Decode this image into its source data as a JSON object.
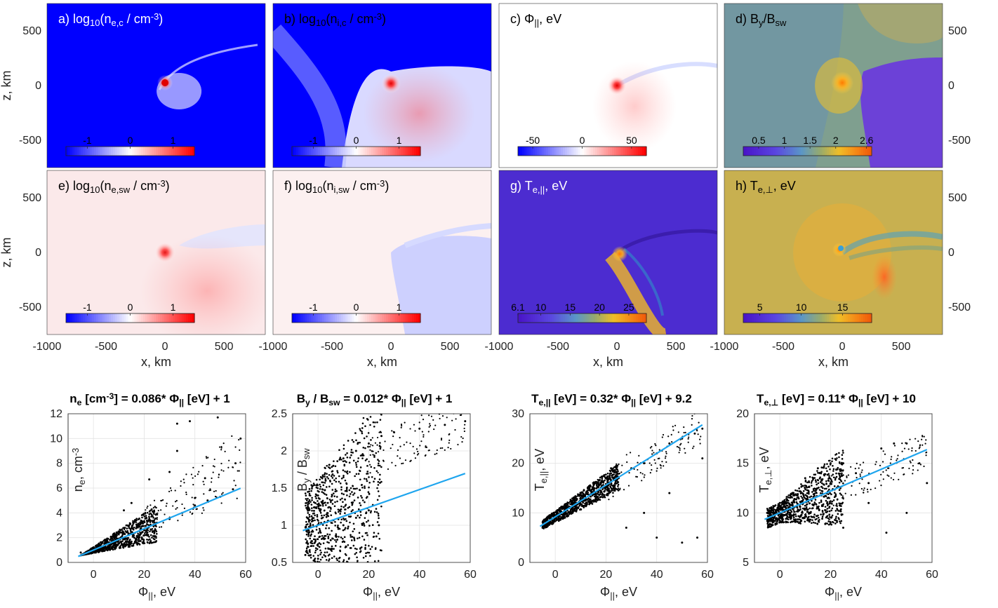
{
  "figure": {
    "background": "#ffffff"
  },
  "chart_data": [
    {
      "type": "heatmap",
      "id": "a",
      "title": "a) log10(ne,c / cm-3)",
      "title_parts": {
        "tag": "a)",
        "base": "log",
        "sub1": "10",
        "mid": "(n",
        "sub2": "e,c",
        "rest": " / cm",
        "sup": "-3",
        "end": ")"
      },
      "colormap": "bwr",
      "background": "#0000ff",
      "colorbar": {
        "ticks": [
          "-1",
          "0",
          "1"
        ],
        "tick_pos": [
          -1,
          0,
          1
        ],
        "range": [
          -1.5,
          1.5
        ]
      },
      "yticks": [
        "500",
        "0",
        "-500"
      ],
      "ylabel": "z, km",
      "xlim": [
        -1000,
        850
      ],
      "ylim": [
        -750,
        750
      ]
    },
    {
      "type": "heatmap",
      "id": "b",
      "title": "b) log10(ni,c / cm-3)",
      "title_parts": {
        "tag": "b)",
        "base": "log",
        "sub1": "10",
        "mid": "(n",
        "sub2": "i,c",
        "rest": " / cm",
        "sup": "-3",
        "end": ")"
      },
      "colormap": "bwr",
      "background": "#0000ff",
      "colorbar": {
        "ticks": [
          "-1",
          "0",
          "1"
        ],
        "tick_pos": [
          -1,
          0,
          1
        ],
        "range": [
          -1.5,
          1.5
        ]
      }
    },
    {
      "type": "heatmap",
      "id": "c",
      "title": "c) Φ||, eV",
      "title_parts": {
        "tag": "c)",
        "base": "Φ",
        "sub1": "||",
        "rest": ", eV"
      },
      "colormap": "bwr",
      "background": "#ffffff",
      "colorbar": {
        "ticks": [
          "-50",
          "0",
          "50"
        ],
        "tick_pos": [
          -50,
          0,
          50
        ],
        "range": [
          -65,
          65
        ]
      }
    },
    {
      "type": "heatmap",
      "id": "d",
      "title": "d) By/Bsw",
      "title_parts": {
        "tag": "d)",
        "base": "B",
        "sub1": "y",
        "rest": "/B",
        "sub2": "sw"
      },
      "colormap": "plasma",
      "background": "#7f9f8f",
      "colorbar": {
        "ticks": [
          "0.5",
          "1",
          "1.5",
          "2",
          "2.6"
        ],
        "tick_pos": [
          0.5,
          1,
          1.5,
          2,
          2.6
        ],
        "range": [
          0.2,
          2.7
        ]
      },
      "yticks": [
        "500",
        "0",
        "-500"
      ]
    },
    {
      "type": "heatmap",
      "id": "e",
      "title": "e) log10(ne,sw / cm-3)",
      "title_parts": {
        "tag": "e)",
        "base": "log",
        "sub1": "10",
        "mid": "(n",
        "sub2": "e,sw",
        "rest": " / cm",
        "sup": "-3",
        "end": ")"
      },
      "colormap": "bwr",
      "background": "#fbe9ea",
      "colorbar": {
        "ticks": [
          "-1",
          "0",
          "1"
        ],
        "tick_pos": [
          -1,
          0,
          1
        ],
        "range": [
          -1.5,
          1.5
        ]
      },
      "yticks": [
        "500",
        "0",
        "-500"
      ],
      "ylabel": "z, km",
      "xticks": [
        "-1000",
        "-500",
        "0",
        "500"
      ],
      "xlabel": "x, km"
    },
    {
      "type": "heatmap",
      "id": "f",
      "title": "f) log10(ni,sw / cm-3)",
      "title_parts": {
        "tag": "f)",
        "base": "log",
        "sub1": "10",
        "mid": "(n",
        "sub2": "i,sw",
        "rest": " / cm",
        "sup": "-3",
        "end": ")"
      },
      "colormap": "bwr",
      "background": "#fcf0f0",
      "colorbar": {
        "ticks": [
          "-1",
          "0",
          "1"
        ],
        "tick_pos": [
          -1,
          0,
          1
        ],
        "range": [
          -1.5,
          1.5
        ]
      },
      "xticks": [
        "-1000",
        "-500",
        "0",
        "500"
      ],
      "xlabel": "x, km"
    },
    {
      "type": "heatmap",
      "id": "g",
      "title": "g) Te,||, eV",
      "title_parts": {
        "tag": "g)",
        "base": "T",
        "sub1": "e,||",
        "rest": ", eV"
      },
      "colormap": "plasma",
      "background": "#4c2cd0",
      "colorbar": {
        "ticks": [
          "6.1",
          "10",
          "15",
          "20",
          "25"
        ],
        "tick_pos": [
          6.1,
          10,
          15,
          20,
          25
        ],
        "range": [
          6.1,
          28
        ]
      },
      "xticks": [
        "-1000",
        "-500",
        "0",
        "500"
      ],
      "xlabel": "x, km"
    },
    {
      "type": "heatmap",
      "id": "h",
      "title": "h) Te,⊥, eV",
      "title_parts": {
        "tag": "h)",
        "base": "T",
        "sub1": "e,⊥",
        "rest": ", eV"
      },
      "colormap": "plasma",
      "background": "#c8b050",
      "colorbar": {
        "ticks": [
          "5",
          "10",
          "15"
        ],
        "tick_pos": [
          5,
          10,
          15
        ],
        "range": [
          3,
          18.5
        ]
      },
      "yticks": [
        "500",
        "0",
        "-500"
      ],
      "xticks": [
        "-1000",
        "-500",
        "0",
        "500"
      ],
      "xlabel": "x, km"
    },
    {
      "type": "scatter",
      "id": "i",
      "title": "ne [cm-3] = 0.086* Φ|| [eV] + 1",
      "title_parts": {
        "a": "n",
        "a_sub": "e",
        "b": " [cm",
        "b_sup": "-3",
        "c": "] = 0.086* Φ",
        "c_sub": "||",
        "d": " [eV] + 1"
      },
      "xlabel": "Φ||, eV",
      "xlabel_parts": {
        "base": "Φ",
        "sub": "||",
        "rest": ", eV"
      },
      "ylabel": "ne, cm-3",
      "ylabel_parts": {
        "base": "n",
        "sub": "e",
        "rest": ", cm",
        "sup": "-3"
      },
      "xlim": [
        -10,
        60
      ],
      "ylim": [
        0,
        12
      ],
      "xticks": [
        "0",
        "20",
        "40",
        "60"
      ],
      "xtick_vals": [
        0,
        20,
        40,
        60
      ],
      "yticks": [
        "0",
        "2",
        "4",
        "6",
        "8",
        "10",
        "12"
      ],
      "ytick_vals": [
        0,
        2,
        4,
        6,
        8,
        10,
        12
      ],
      "fit": {
        "slope": 0.086,
        "intercept": 1,
        "x": [
          -6,
          58
        ],
        "color": "#1ea5ee"
      },
      "points": [
        [
          -5,
          0.8
        ],
        [
          0,
          1.1
        ],
        [
          5,
          1.5
        ],
        [
          10,
          1.9
        ],
        [
          15,
          2.3
        ],
        [
          20,
          2.6
        ],
        [
          25,
          3.2
        ],
        [
          30,
          3.5
        ],
        [
          35,
          4.0
        ],
        [
          40,
          4.6
        ],
        [
          45,
          5.0
        ],
        [
          50,
          5.3
        ],
        [
          55,
          5.9
        ],
        [
          22,
          6.7
        ],
        [
          30,
          7.3
        ],
        [
          33,
          9.0
        ],
        [
          38,
          11.4
        ],
        [
          33,
          11.2
        ],
        [
          49,
          11.7
        ],
        [
          58,
          10.0
        ],
        [
          56,
          8.0
        ],
        [
          44,
          6.8
        ],
        [
          40,
          5.2
        ],
        [
          12,
          4.2
        ],
        [
          15,
          4.8
        ]
      ]
    },
    {
      "type": "scatter",
      "id": "j",
      "title": "By / Bsw = 0.012* Φ|| [eV] + 1",
      "title_parts": {
        "a": "B",
        "a_sub": "y",
        "b": " / B",
        "b_sub": "sw",
        "c": " = 0.012* Φ",
        "c_sub": "||",
        "d": " [eV] + 1"
      },
      "xlabel": "Φ||, eV",
      "xlabel_parts": {
        "base": "Φ",
        "sub": "||",
        "rest": ", eV"
      },
      "ylabel": "By / Bsw",
      "ylabel_parts": {
        "base": "B",
        "sub": "y",
        "rest": " / B",
        "sub2": "sw"
      },
      "xlim": [
        -10,
        60
      ],
      "ylim": [
        0.5,
        2.5
      ],
      "xticks": [
        "0",
        "20",
        "40",
        "60"
      ],
      "xtick_vals": [
        0,
        20,
        40,
        60
      ],
      "yticks": [
        "0.5",
        "1",
        "1.5",
        "2",
        "2.5"
      ],
      "ytick_vals": [
        0.5,
        1,
        1.5,
        2,
        2.5
      ],
      "fit": {
        "slope": 0.012,
        "intercept": 1,
        "x": [
          -6,
          58
        ],
        "color": "#1ea5ee"
      },
      "points": [
        [
          -5,
          0.6
        ],
        [
          -3,
          1.0
        ],
        [
          0,
          1.4
        ],
        [
          3,
          1.6
        ],
        [
          6,
          1.8
        ],
        [
          10,
          1.9
        ],
        [
          15,
          2.0
        ],
        [
          20,
          2.1
        ],
        [
          25,
          2.2
        ],
        [
          30,
          2.25
        ],
        [
          40,
          2.3
        ],
        [
          50,
          2.35
        ],
        [
          58,
          2.4
        ],
        [
          0,
          0.55
        ],
        [
          5,
          0.8
        ],
        [
          10,
          1.0
        ],
        [
          15,
          1.1
        ],
        [
          20,
          1.2
        ],
        [
          24,
          1.0
        ],
        [
          23,
          0.85
        ]
      ]
    },
    {
      "type": "scatter",
      "id": "k",
      "title": "Te,|| [eV] = 0.32* Φ|| [eV] + 9.2",
      "title_parts": {
        "a": "T",
        "a_sub": "e,||",
        "b": " [eV] = 0.32* Φ",
        "b_sub": "||",
        "c": " [eV] + 9.2"
      },
      "xlabel": "Φ||, eV",
      "xlabel_parts": {
        "base": "Φ",
        "sub": "||",
        "rest": ", eV"
      },
      "ylabel": "Te,||, eV",
      "ylabel_parts": {
        "base": "T",
        "sub": "e,||",
        "rest": ", eV"
      },
      "xlim": [
        -10,
        60
      ],
      "ylim": [
        0,
        30
      ],
      "xticks": [
        "0",
        "20",
        "40",
        "60"
      ],
      "xtick_vals": [
        0,
        20,
        40,
        60
      ],
      "yticks": [
        "0",
        "10",
        "20",
        "30"
      ],
      "ytick_vals": [
        0,
        10,
        20,
        30
      ],
      "fit": {
        "slope": 0.32,
        "intercept": 9.2,
        "x": [
          -6,
          58
        ],
        "color": "#1ea5ee"
      },
      "points": [
        [
          -5,
          7
        ],
        [
          0,
          9
        ],
        [
          5,
          11
        ],
        [
          10,
          13
        ],
        [
          15,
          15
        ],
        [
          20,
          17
        ],
        [
          22,
          19
        ],
        [
          25,
          17
        ],
        [
          30,
          19
        ],
        [
          35,
          20
        ],
        [
          40,
          22
        ],
        [
          45,
          24
        ],
        [
          50,
          25
        ],
        [
          55,
          26
        ],
        [
          58,
          27
        ],
        [
          28,
          7
        ],
        [
          40,
          5
        ],
        [
          50,
          4
        ],
        [
          56,
          5
        ],
        [
          45,
          14
        ],
        [
          35,
          10
        ],
        [
          58,
          21
        ]
      ]
    },
    {
      "type": "scatter",
      "id": "l",
      "title": "Te,⊥ [eV] = 0.11* Φ|| [eV] + 10",
      "title_parts": {
        "a": "T",
        "a_sub": "e,⊥",
        "b": " [eV] = 0.11* Φ",
        "b_sub": "||",
        "c": " [eV] + 10"
      },
      "xlabel": "Φ||, eV",
      "xlabel_parts": {
        "base": "Φ",
        "sub": "||",
        "rest": ", eV"
      },
      "ylabel": "Te,⊥, eV",
      "ylabel_parts": {
        "base": "T",
        "sub": "e,⊥",
        "rest": ", eV"
      },
      "xlim": [
        -10,
        60
      ],
      "ylim": [
        5,
        20
      ],
      "xticks": [
        "0",
        "20",
        "40",
        "60"
      ],
      "xtick_vals": [
        0,
        20,
        40,
        60
      ],
      "yticks": [
        "5",
        "10",
        "15",
        "20"
      ],
      "ytick_vals": [
        5,
        10,
        15,
        20
      ],
      "fit": {
        "slope": 0.11,
        "intercept": 10,
        "x": [
          -6,
          58
        ],
        "color": "#1ea5ee"
      },
      "points": [
        [
          -5,
          10
        ],
        [
          0,
          11
        ],
        [
          5,
          12
        ],
        [
          10,
          13.5
        ],
        [
          15,
          14.5
        ],
        [
          20,
          15
        ],
        [
          25,
          15
        ],
        [
          30,
          14
        ],
        [
          35,
          13
        ],
        [
          40,
          16.5
        ],
        [
          45,
          17
        ],
        [
          50,
          17
        ],
        [
          55,
          15
        ],
        [
          58,
          13
        ],
        [
          20,
          9
        ],
        [
          25,
          8.5
        ],
        [
          42,
          8
        ],
        [
          50,
          10
        ],
        [
          35,
          11
        ]
      ]
    }
  ]
}
